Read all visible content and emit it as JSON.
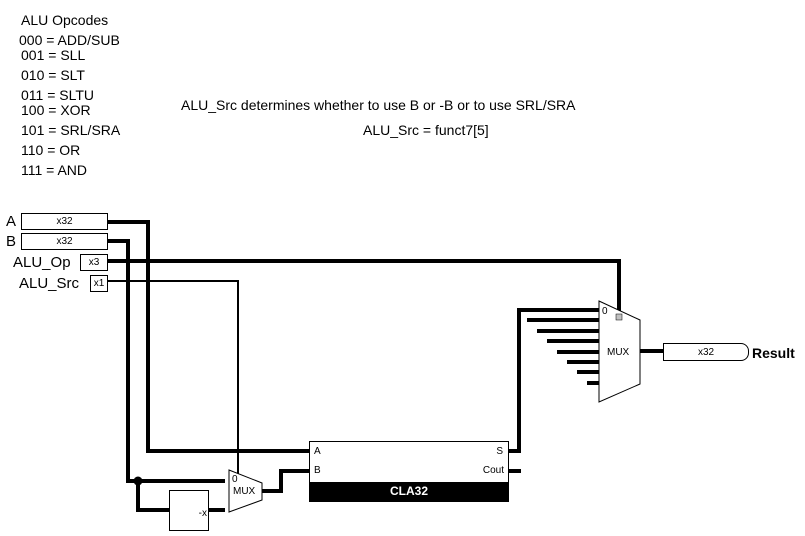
{
  "opcodes": {
    "title": "ALU Opcodes",
    "lines": [
      "000 = ADD/SUB",
      "001 = SLL",
      "010 = SLT",
      "011 = SLTU",
      "100 = XOR",
      "101 = SRL/SRA",
      "110 = OR",
      "111 = AND"
    ]
  },
  "notes": {
    "line1": "ALU_Src determines whether to use B or -B or to use SRL/SRA",
    "line2": "ALU_Src = funct7[5]"
  },
  "inputs": {
    "a": {
      "label": "A",
      "width": "x32"
    },
    "b": {
      "label": "B",
      "width": "x32"
    },
    "op": {
      "label": "ALU_Op",
      "width": "x3"
    },
    "src": {
      "label": "ALU_Src",
      "width": "x1"
    }
  },
  "negator": {
    "label": "-x"
  },
  "mux_small": {
    "label": "MUX",
    "sel": "0"
  },
  "cla": {
    "title": "CLA32",
    "pin_a": "A",
    "pin_b": "B",
    "pin_s": "S",
    "pin_cout": "Cout"
  },
  "mux_big": {
    "label": "MUX",
    "sel": "0"
  },
  "output": {
    "width": "x32",
    "label": "Result"
  }
}
